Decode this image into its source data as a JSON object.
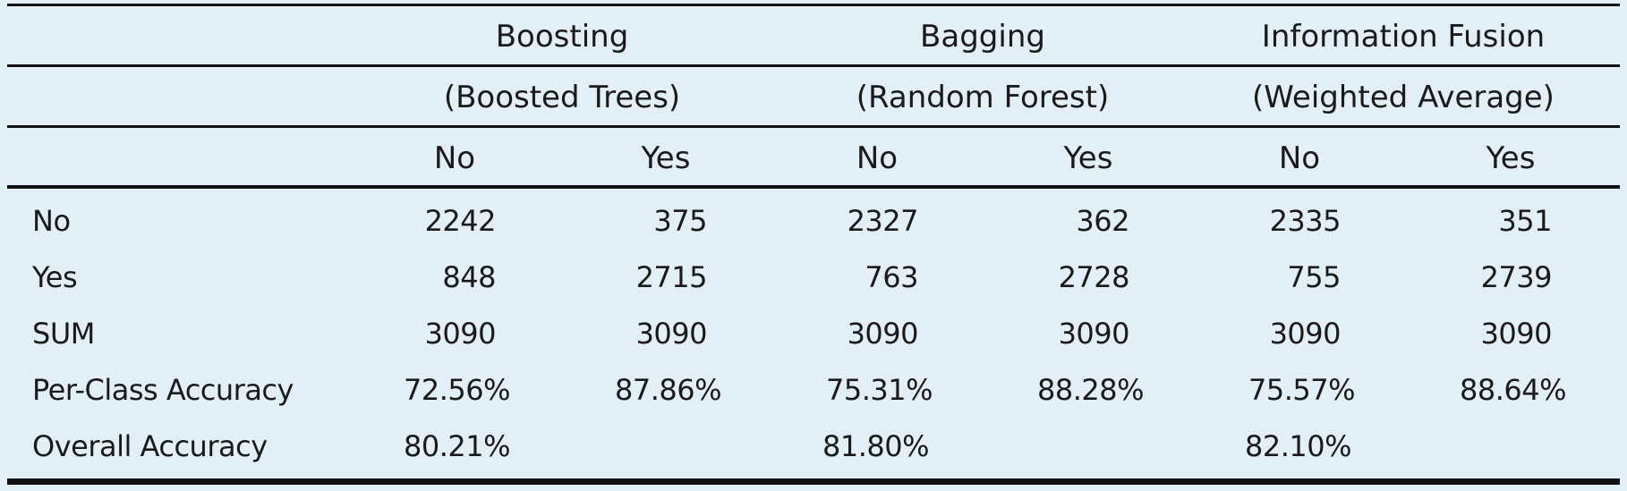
{
  "groups": [
    {
      "name": "Boosting",
      "method": "(Boosted Trees)"
    },
    {
      "name": "Bagging",
      "method": "(Random Forest)"
    },
    {
      "name": "Information Fusion",
      "method": "(Weighted Average)"
    }
  ],
  "subheaders": [
    "No",
    "Yes",
    "No",
    "Yes",
    "No",
    "Yes"
  ],
  "rows": [
    {
      "label": "No",
      "values": [
        "2242",
        "375",
        "2327",
        "362",
        "2335",
        "351"
      ]
    },
    {
      "label": "Yes",
      "values": [
        "848",
        "2715",
        "763",
        "2728",
        "755",
        "2739"
      ]
    },
    {
      "label": "SUM",
      "values": [
        "3090",
        "3090",
        "3090",
        "3090",
        "3090",
        "3090"
      ]
    },
    {
      "label": "Per-Class Accuracy",
      "values": [
        "72.56%",
        "87.86%",
        "75.31%",
        "88.28%",
        "75.57%",
        "88.64%"
      ]
    },
    {
      "label": "Overall Accuracy",
      "values": [
        "80.21%",
        "",
        "81.80%",
        "",
        "82.10%",
        ""
      ]
    }
  ]
}
